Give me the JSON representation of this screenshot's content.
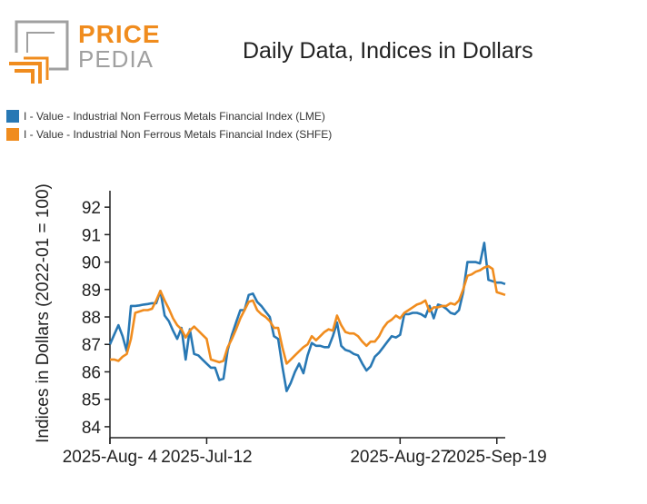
{
  "logo": {
    "line1": "PRICE",
    "line2": "PEDIA"
  },
  "colors": {
    "lme": "#2878b4",
    "shfe": "#f08c1e",
    "logo_orange": "#f08c1e",
    "logo_grey": "#a0a0a0"
  },
  "chart_data": {
    "type": "line",
    "title": "Daily Data, Indices in Dollars",
    "xlabel": "",
    "ylabel": "Indices in Dollars (2022-01 = 100)",
    "ylim": [
      83.6,
      92.6
    ],
    "yticks": [
      84,
      85,
      86,
      87,
      88,
      89,
      90,
      91,
      92
    ],
    "xticks": [
      "2025-Jul-12",
      "2025-Aug- 4",
      "2025-Aug-27",
      "2025-Sep-19"
    ],
    "legend_position": "top-left",
    "grid": false,
    "x": [
      "2025-Jun-19",
      "2025-Jun-20",
      "2025-Jun-21",
      "2025-Jun-22",
      "2025-Jun-23",
      "2025-Jun-24",
      "2025-Jun-25",
      "2025-Jun-26",
      "2025-Jun-27",
      "2025-Jun-28",
      "2025-Jun-29",
      "2025-Jun-30",
      "2025-Jul-01",
      "2025-Jul-02",
      "2025-Jul-03",
      "2025-Jul-04",
      "2025-Jul-05",
      "2025-Jul-06",
      "2025-Jul-07",
      "2025-Jul-08",
      "2025-Jul-09",
      "2025-Jul-10",
      "2025-Jul-11",
      "2025-Jul-12",
      "2025-Jul-13",
      "2025-Jul-14",
      "2025-Jul-15",
      "2025-Jul-16",
      "2025-Jul-17",
      "2025-Jul-18",
      "2025-Jul-19",
      "2025-Jul-20",
      "2025-Jul-21",
      "2025-Jul-22",
      "2025-Jul-23",
      "2025-Jul-24",
      "2025-Jul-25",
      "2025-Jul-26",
      "2025-Jul-27",
      "2025-Jul-28",
      "2025-Jul-29",
      "2025-Jul-30",
      "2025-Jul-31",
      "2025-Aug-01",
      "2025-Aug-02",
      "2025-Aug-03",
      "2025-Aug-04",
      "2025-Aug-05",
      "2025-Aug-06",
      "2025-Aug-07",
      "2025-Aug-08",
      "2025-Aug-09",
      "2025-Aug-10",
      "2025-Aug-11",
      "2025-Aug-12",
      "2025-Aug-13",
      "2025-Aug-14",
      "2025-Aug-15",
      "2025-Aug-16",
      "2025-Aug-17",
      "2025-Aug-18",
      "2025-Aug-19",
      "2025-Aug-20",
      "2025-Aug-21",
      "2025-Aug-22",
      "2025-Aug-23",
      "2025-Aug-24",
      "2025-Aug-25",
      "2025-Aug-26",
      "2025-Aug-27",
      "2025-Aug-28",
      "2025-Aug-29",
      "2025-Aug-30",
      "2025-Aug-31",
      "2025-Sep-01",
      "2025-Sep-02",
      "2025-Sep-03",
      "2025-Sep-04",
      "2025-Sep-05",
      "2025-Sep-06",
      "2025-Sep-07",
      "2025-Sep-08",
      "2025-Sep-09",
      "2025-Sep-10",
      "2025-Sep-11",
      "2025-Sep-12",
      "2025-Sep-13",
      "2025-Sep-14",
      "2025-Sep-15",
      "2025-Sep-16",
      "2025-Sep-17",
      "2025-Sep-18",
      "2025-Sep-19",
      "2025-Sep-20",
      "2025-Sep-21"
    ],
    "series": [
      {
        "name": "I - Value - Industrial Non Ferrous Metals Financial Index (LME)",
        "color": "#2878b4",
        "values": [
          87.0,
          87.35,
          87.7,
          87.3,
          86.75,
          88.4,
          88.4,
          88.42,
          88.45,
          88.47,
          88.5,
          88.5,
          88.95,
          88.05,
          87.85,
          87.5,
          87.2,
          87.6,
          86.45,
          87.55,
          86.65,
          86.6,
          86.45,
          86.3,
          86.15,
          86.15,
          85.7,
          85.75,
          86.8,
          87.35,
          87.8,
          88.25,
          88.25,
          88.8,
          88.85,
          88.55,
          88.4,
          88.2,
          88.0,
          87.3,
          87.2,
          86.2,
          85.3,
          85.6,
          86.0,
          86.3,
          85.95,
          86.6,
          87.05,
          86.95,
          86.95,
          86.9,
          86.9,
          87.3,
          87.8,
          86.95,
          86.8,
          86.75,
          86.65,
          86.6,
          86.3,
          86.05,
          86.2,
          86.55,
          86.7,
          86.9,
          87.1,
          87.3,
          87.25,
          87.35,
          88.1,
          88.1,
          88.15,
          88.15,
          88.1,
          88.0,
          88.4,
          87.95,
          88.45,
          88.4,
          88.3,
          88.15,
          88.1,
          88.25,
          88.9,
          90.0,
          90.0,
          90.0,
          89.95,
          90.7,
          89.35,
          89.3,
          89.25,
          89.25,
          89.2
        ]
      },
      {
        "name": "I - Value - Industrial Non Ferrous Metals Financial Index (SHFE)",
        "color": "#f08c1e",
        "values": [
          86.45,
          86.45,
          86.4,
          86.55,
          86.65,
          87.2,
          88.15,
          88.2,
          88.25,
          88.25,
          88.3,
          88.6,
          88.95,
          88.6,
          88.3,
          87.95,
          87.7,
          87.55,
          87.25,
          87.5,
          87.65,
          87.5,
          87.35,
          87.2,
          86.45,
          86.4,
          86.35,
          86.4,
          86.9,
          87.2,
          87.55,
          87.95,
          88.25,
          88.55,
          88.6,
          88.25,
          88.1,
          88.0,
          87.85,
          87.6,
          87.6,
          86.9,
          86.3,
          86.45,
          86.6,
          86.75,
          86.9,
          87.0,
          87.3,
          87.15,
          87.3,
          87.45,
          87.55,
          87.5,
          88.05,
          87.7,
          87.45,
          87.4,
          87.4,
          87.3,
          87.1,
          86.95,
          87.1,
          87.1,
          87.3,
          87.6,
          87.8,
          87.9,
          88.05,
          87.95,
          88.15,
          88.25,
          88.35,
          88.45,
          88.5,
          88.6,
          88.2,
          88.35,
          88.35,
          88.4,
          88.4,
          88.5,
          88.45,
          88.6,
          89.0,
          89.5,
          89.55,
          89.65,
          89.7,
          89.8,
          89.85,
          89.75,
          88.9,
          88.85,
          88.8
        ]
      }
    ]
  }
}
